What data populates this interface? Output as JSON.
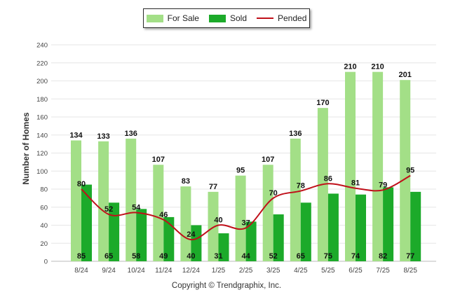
{
  "chart_data": {
    "type": "bar",
    "categories": [
      "8/24",
      "9/24",
      "10/24",
      "11/24",
      "12/24",
      "1/25",
      "2/25",
      "3/25",
      "4/25",
      "5/25",
      "6/25",
      "7/25",
      "8/25"
    ],
    "series": [
      {
        "name": "For Sale",
        "type": "bar",
        "color": "#a3df87",
        "values": [
          134,
          133,
          136,
          107,
          83,
          77,
          95,
          107,
          136,
          170,
          210,
          210,
          201
        ]
      },
      {
        "name": "Sold",
        "type": "bar",
        "color": "#1caa2a",
        "values": [
          85,
          65,
          58,
          49,
          40,
          31,
          44,
          52,
          65,
          75,
          74,
          82,
          77
        ]
      },
      {
        "name": "Pended",
        "type": "line",
        "color": "#c0101a",
        "values": [
          80,
          52,
          54,
          46,
          24,
          40,
          37,
          70,
          78,
          86,
          81,
          79,
          95
        ]
      }
    ],
    "ylabel": "Number of Homes",
    "ylim": [
      0,
      240
    ],
    "yticks": [
      0,
      20,
      40,
      60,
      80,
      100,
      120,
      140,
      160,
      180,
      200,
      220,
      240
    ],
    "grid": true,
    "legend_position": "top-center"
  },
  "footer": {
    "copyright": "Copyright © Trendgraphix, Inc."
  }
}
